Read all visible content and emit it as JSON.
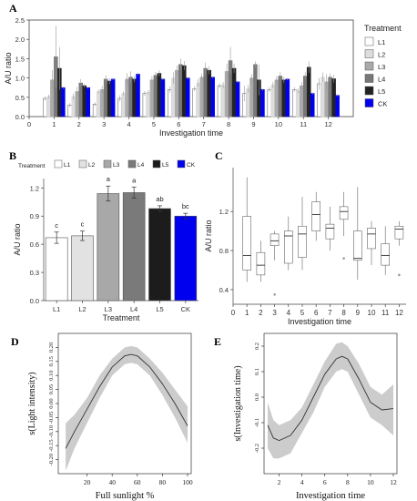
{
  "chart_data": [
    {
      "panel": "A",
      "type": "bar",
      "xlabel": "Investigation time",
      "ylabel": "A/U ratio",
      "ylim": [
        0,
        2.5
      ],
      "yticks": [
        "0.0",
        "0.5",
        "1.0",
        "1.5",
        "2.0",
        "2.5"
      ],
      "xticks": [
        "0",
        "1",
        "2",
        "3",
        "4",
        "5",
        "6",
        "7",
        "8",
        "9",
        "10",
        "11",
        "12"
      ],
      "categories": [
        "1",
        "2",
        "3",
        "4",
        "5",
        "6",
        "7",
        "8",
        "9",
        "10",
        "11",
        "12"
      ],
      "legend_title": "Treatment",
      "legend_position": "right",
      "series": [
        {
          "name": "L1",
          "color": "#ffffff",
          "values": [
            0.47,
            0.3,
            0.32,
            0.47,
            0.6,
            0.7,
            0.72,
            0.8,
            0.6,
            0.7,
            0.7,
            0.85
          ],
          "errors": [
            0.05,
            0.05,
            0.05,
            0.08,
            0.06,
            0.08,
            0.06,
            0.06,
            0.2,
            0.06,
            0.06,
            0.15
          ]
        },
        {
          "name": "L2",
          "color": "#dddddd",
          "values": [
            0.52,
            0.52,
            0.65,
            0.6,
            0.63,
            1.0,
            0.87,
            0.82,
            0.72,
            0.82,
            0.67,
            1.02
          ],
          "errors": [
            0.05,
            0.08,
            0.05,
            0.05,
            0.05,
            0.15,
            0.1,
            0.08,
            0.1,
            0.08,
            0.06,
            0.12
          ]
        },
        {
          "name": "L3",
          "color": "#aaaaaa",
          "values": [
            0.95,
            0.65,
            0.7,
            0.97,
            0.95,
            1.2,
            1.02,
            1.17,
            1.0,
            0.95,
            0.8,
            0.9
          ],
          "errors": [
            0.25,
            0.12,
            0.1,
            0.15,
            0.1,
            0.12,
            0.1,
            0.2,
            0.1,
            0.1,
            0.1,
            0.2
          ]
        },
        {
          "name": "L4",
          "color": "#777777",
          "values": [
            1.55,
            0.87,
            0.97,
            1.02,
            1.07,
            1.35,
            1.25,
            1.45,
            1.35,
            1.05,
            1.05,
            1.02
          ],
          "errors": [
            0.8,
            0.1,
            0.1,
            0.15,
            0.08,
            0.15,
            0.15,
            0.35,
            0.08,
            0.1,
            0.1,
            0.1
          ]
        },
        {
          "name": "L5",
          "color": "#222222",
          "values": [
            1.25,
            0.8,
            0.92,
            0.97,
            1.12,
            1.32,
            1.2,
            1.25,
            0.95,
            0.95,
            1.28,
            0.98
          ],
          "errors": [
            0.55,
            0.05,
            0.08,
            0.08,
            0.08,
            0.12,
            0.1,
            0.12,
            0.4,
            0.08,
            0.15,
            0.1
          ]
        },
        {
          "name": "CK",
          "color": "#0000ee",
          "values": [
            0.75,
            0.75,
            0.97,
            1.1,
            0.97,
            1.0,
            1.02,
            0.9,
            0.7,
            0.97,
            0.6,
            0.55
          ],
          "errors": [
            0.03,
            0.03,
            0.03,
            0.03,
            0.03,
            0.03,
            0.03,
            0.03,
            0.03,
            0.03,
            0.03,
            0.03
          ]
        }
      ]
    },
    {
      "panel": "B",
      "type": "bar",
      "xlabel": "Treatment",
      "ylabel": "A/U ratio",
      "ylim": [
        0,
        1.3
      ],
      "yticks": [
        "0.0",
        "0.3",
        "0.6",
        "0.9",
        "1.2"
      ],
      "legend_title": "Treatment",
      "legend_position": "top",
      "categories": [
        "L1",
        "L2",
        "L3",
        "L4",
        "L5",
        "CK"
      ],
      "values": [
        0.67,
        0.69,
        1.14,
        1.15,
        0.98,
        0.9
      ],
      "errors": [
        0.06,
        0.05,
        0.08,
        0.06,
        0.03,
        0.03
      ],
      "colors": [
        "#ffffff",
        "#e2e2e2",
        "#a8a8a8",
        "#7a7a7a",
        "#1c1c1c",
        "#0000ee"
      ],
      "letters": [
        "c",
        "c",
        "a",
        "a",
        "ab",
        "bc"
      ]
    },
    {
      "panel": "C",
      "type": "box",
      "xlabel": "Investigation time",
      "ylabel": "A/U ratio",
      "ylim": [
        0.25,
        1.65
      ],
      "yticks": [
        "0.4",
        "0.8",
        "1.2"
      ],
      "categories": [
        "1",
        "2",
        "3",
        "4",
        "5",
        "6",
        "7",
        "8",
        "9",
        "10",
        "11",
        "12"
      ],
      "boxes": [
        {
          "min": 0.48,
          "q1": 0.6,
          "median": 0.75,
          "q3": 1.15,
          "max": 1.55,
          "outliers": []
        },
        {
          "min": 0.48,
          "q1": 0.55,
          "median": 0.65,
          "q3": 0.78,
          "max": 0.9,
          "outliers": []
        },
        {
          "min": 0.7,
          "q1": 0.85,
          "median": 0.9,
          "q3": 0.97,
          "max": 1.0,
          "outliers": [
            0.35
          ]
        },
        {
          "min": 0.6,
          "q1": 0.67,
          "median": 0.95,
          "q3": 1.0,
          "max": 1.15,
          "outliers": []
        },
        {
          "min": 0.6,
          "q1": 0.73,
          "median": 0.97,
          "q3": 1.05,
          "max": 1.35,
          "outliers": []
        },
        {
          "min": 0.9,
          "q1": 1.0,
          "median": 1.17,
          "q3": 1.3,
          "max": 1.4,
          "outliers": []
        },
        {
          "min": 0.8,
          "q1": 0.92,
          "median": 1.03,
          "q3": 1.07,
          "max": 1.25,
          "outliers": []
        },
        {
          "min": 0.95,
          "q1": 1.12,
          "median": 1.2,
          "q3": 1.25,
          "max": 1.4,
          "outliers": [
            0.72
          ]
        },
        {
          "min": 0.5,
          "q1": 0.7,
          "median": 0.72,
          "q3": 1.0,
          "max": 1.45,
          "outliers": []
        },
        {
          "min": 0.65,
          "q1": 0.82,
          "median": 0.97,
          "q3": 1.03,
          "max": 1.1,
          "outliers": []
        },
        {
          "min": 0.55,
          "q1": 0.65,
          "median": 0.75,
          "q3": 0.87,
          "max": 1.05,
          "outliers": []
        },
        {
          "min": 0.85,
          "q1": 0.92,
          "median": 1.02,
          "q3": 1.05,
          "max": 1.1,
          "outliers": [
            0.55
          ]
        }
      ]
    },
    {
      "panel": "D",
      "type": "line",
      "xlabel": "Full sunlight %",
      "ylabel": "s(Light intensity)",
      "xlim": [
        0,
        100
      ],
      "ylim": [
        -0.25,
        0.25
      ],
      "xticks": [
        "20",
        "40",
        "60",
        "80",
        "100"
      ],
      "yticks": [
        "-0.20",
        "-0.15",
        "-0.10",
        "-0.05",
        "0.00",
        "0.05",
        "0.10",
        "0.15",
        "0.20"
      ],
      "x": [
        3,
        10,
        20,
        30,
        40,
        50,
        55,
        60,
        70,
        80,
        90,
        100
      ],
      "y": [
        -0.16,
        -0.1,
        -0.02,
        0.06,
        0.13,
        0.17,
        0.175,
        0.17,
        0.13,
        0.07,
        0.0,
        -0.08
      ],
      "upper": [
        -0.07,
        -0.04,
        0.02,
        0.1,
        0.16,
        0.2,
        0.205,
        0.2,
        0.16,
        0.11,
        0.05,
        -0.01
      ],
      "lower": [
        -0.24,
        -0.16,
        -0.07,
        0.02,
        0.1,
        0.14,
        0.145,
        0.14,
        0.1,
        0.03,
        -0.05,
        -0.14
      ]
    },
    {
      "panel": "E",
      "type": "line",
      "xlabel": "Investigation time",
      "ylabel": "s(Investigation time)",
      "xlim": [
        1,
        12
      ],
      "ylim": [
        -0.3,
        0.25
      ],
      "xticks": [
        "2",
        "4",
        "6",
        "8",
        "10",
        "12"
      ],
      "yticks": [
        "-0.2",
        "-0.1",
        "0.0",
        "0.1",
        "0.2"
      ],
      "x": [
        1,
        1.5,
        2,
        3,
        4,
        5,
        6,
        7,
        7.5,
        8,
        9,
        10,
        11,
        12
      ],
      "y": [
        -0.11,
        -0.16,
        -0.17,
        -0.15,
        -0.09,
        0.0,
        0.09,
        0.15,
        0.16,
        0.15,
        0.07,
        -0.02,
        -0.05,
        -0.045
      ],
      "upper": [
        -0.02,
        -0.09,
        -0.11,
        -0.09,
        -0.04,
        0.05,
        0.14,
        0.21,
        0.215,
        0.2,
        0.13,
        0.04,
        0.01,
        0.05
      ],
      "lower": [
        -0.2,
        -0.24,
        -0.24,
        -0.22,
        -0.14,
        -0.06,
        0.04,
        0.1,
        0.11,
        0.1,
        0.01,
        -0.08,
        -0.11,
        -0.15
      ]
    }
  ]
}
